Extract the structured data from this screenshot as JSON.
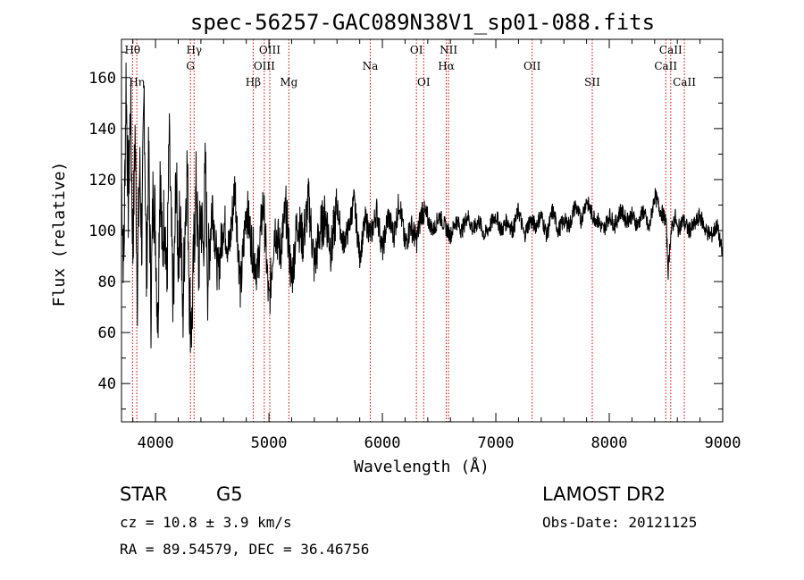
{
  "chart_data": {
    "type": "line",
    "title": "spec-56257-GAC089N38V1_sp01-088.fits",
    "xlabel": "Wavelength (Å)",
    "ylabel": "Flux (relative)",
    "xlim": [
      3700,
      9000
    ],
    "ylim": [
      25,
      175
    ],
    "xticks": [
      4000,
      5000,
      6000,
      7000,
      8000,
      9000
    ],
    "yticks": [
      40,
      60,
      80,
      100,
      120,
      140,
      160
    ],
    "grid": false,
    "series_color": "#000000",
    "line_marker_color": "#cc0000",
    "spectrum": {
      "name": "",
      "x": [
        3700,
        3720,
        3740,
        3760,
        3780,
        3800,
        3820,
        3840,
        3860,
        3880,
        3900,
        3920,
        3940,
        3960,
        3980,
        4000,
        4020,
        4040,
        4060,
        4080,
        4100,
        4120,
        4140,
        4160,
        4180,
        4200,
        4220,
        4240,
        4260,
        4280,
        4300,
        4320,
        4340,
        4360,
        4380,
        4400,
        4420,
        4440,
        4460,
        4480,
        4500,
        4550,
        4600,
        4650,
        4700,
        4750,
        4800,
        4850,
        4900,
        4950,
        5000,
        5050,
        5100,
        5150,
        5200,
        5250,
        5300,
        5350,
        5400,
        5450,
        5500,
        5550,
        5600,
        5650,
        5700,
        5750,
        5800,
        5850,
        5900,
        5950,
        6000,
        6050,
        6100,
        6150,
        6200,
        6250,
        6300,
        6350,
        6400,
        6450,
        6500,
        6550,
        6600,
        6650,
        6700,
        6750,
        6800,
        6850,
        6900,
        6950,
        7000,
        7050,
        7100,
        7150,
        7200,
        7250,
        7300,
        7350,
        7400,
        7450,
        7500,
        7550,
        7600,
        7650,
        7700,
        7750,
        7800,
        7850,
        7900,
        7950,
        8000,
        8050,
        8100,
        8150,
        8200,
        8250,
        8300,
        8350,
        8400,
        8450,
        8500,
        8520,
        8540,
        8560,
        8580,
        8600,
        8650,
        8700,
        8750,
        8800,
        8850,
        8900,
        8950,
        9000
      ],
      "y": [
        120,
        85,
        160,
        110,
        150,
        92,
        138,
        78,
        125,
        95,
        155,
        82,
        130,
        70,
        118,
        100,
        62,
        128,
        88,
        112,
        75,
        135,
        96,
        68,
        122,
        90,
        110,
        64,
        104,
        126,
        72,
        62,
        96,
        118,
        84,
        108,
        92,
        124,
        80,
        98,
        112,
        82,
        104,
        92,
        118,
        76,
        110,
        94,
        84,
        112,
        70,
        102,
        92,
        108,
        80,
        104,
        96,
        112,
        86,
        100,
        106,
        92,
        110,
        95,
        100,
        112,
        90,
        104,
        98,
        108,
        92,
        106,
        98,
        112,
        94,
        102,
        96,
        108,
        104,
        100,
        106,
        102,
        98,
        104,
        100,
        106,
        100,
        104,
        98,
        102,
        106,
        100,
        104,
        100,
        108,
        98,
        104,
        102,
        106,
        98,
        108,
        100,
        104,
        102,
        110,
        104,
        112,
        106,
        104,
        100,
        106,
        102,
        108,
        104,
        106,
        102,
        108,
        100,
        114,
        108,
        104,
        84,
        98,
        102,
        106,
        100,
        104,
        100,
        102,
        106,
        100,
        98,
        102,
        90
      ]
    },
    "lines": [
      {
        "label": "Hθ",
        "x": 3797,
        "row": 1
      },
      {
        "label": "Hη",
        "x": 3835,
        "row": 3
      },
      {
        "label": "Hγ",
        "x": 4340,
        "row": 1
      },
      {
        "label": "G",
        "x": 4308,
        "row": 2
      },
      {
        "label": "Hβ",
        "x": 4861,
        "row": 3
      },
      {
        "label": "OIII",
        "x": 5007,
        "row": 1
      },
      {
        "label": "OIII",
        "x": 4959,
        "row": 2
      },
      {
        "label": "Mg",
        "x": 5175,
        "row": 3
      },
      {
        "label": "Na",
        "x": 5893,
        "row": 2
      },
      {
        "label": "OI",
        "x": 6300,
        "row": 1
      },
      {
        "label": "OI",
        "x": 6364,
        "row": 3
      },
      {
        "label": "NII",
        "x": 6583,
        "row": 1
      },
      {
        "label": "Hα",
        "x": 6563,
        "row": 2
      },
      {
        "label": "OII",
        "x": 7320,
        "row": 2
      },
      {
        "label": "SII",
        "x": 7850,
        "row": 3
      },
      {
        "label": "CaII",
        "x": 8542,
        "row": 1
      },
      {
        "label": "CaII",
        "x": 8498,
        "row": 2
      },
      {
        "label": "CaII",
        "x": 8662,
        "row": 3
      }
    ],
    "info": {
      "object_class": "STAR",
      "subclass": "G5",
      "survey": "LAMOST DR2",
      "redshift": "cz = 10.8 ± 3.9 km/s",
      "obs_date": "Obs-Date: 20121125",
      "coords": "RA =  89.54579, DEC =  36.46756"
    }
  }
}
